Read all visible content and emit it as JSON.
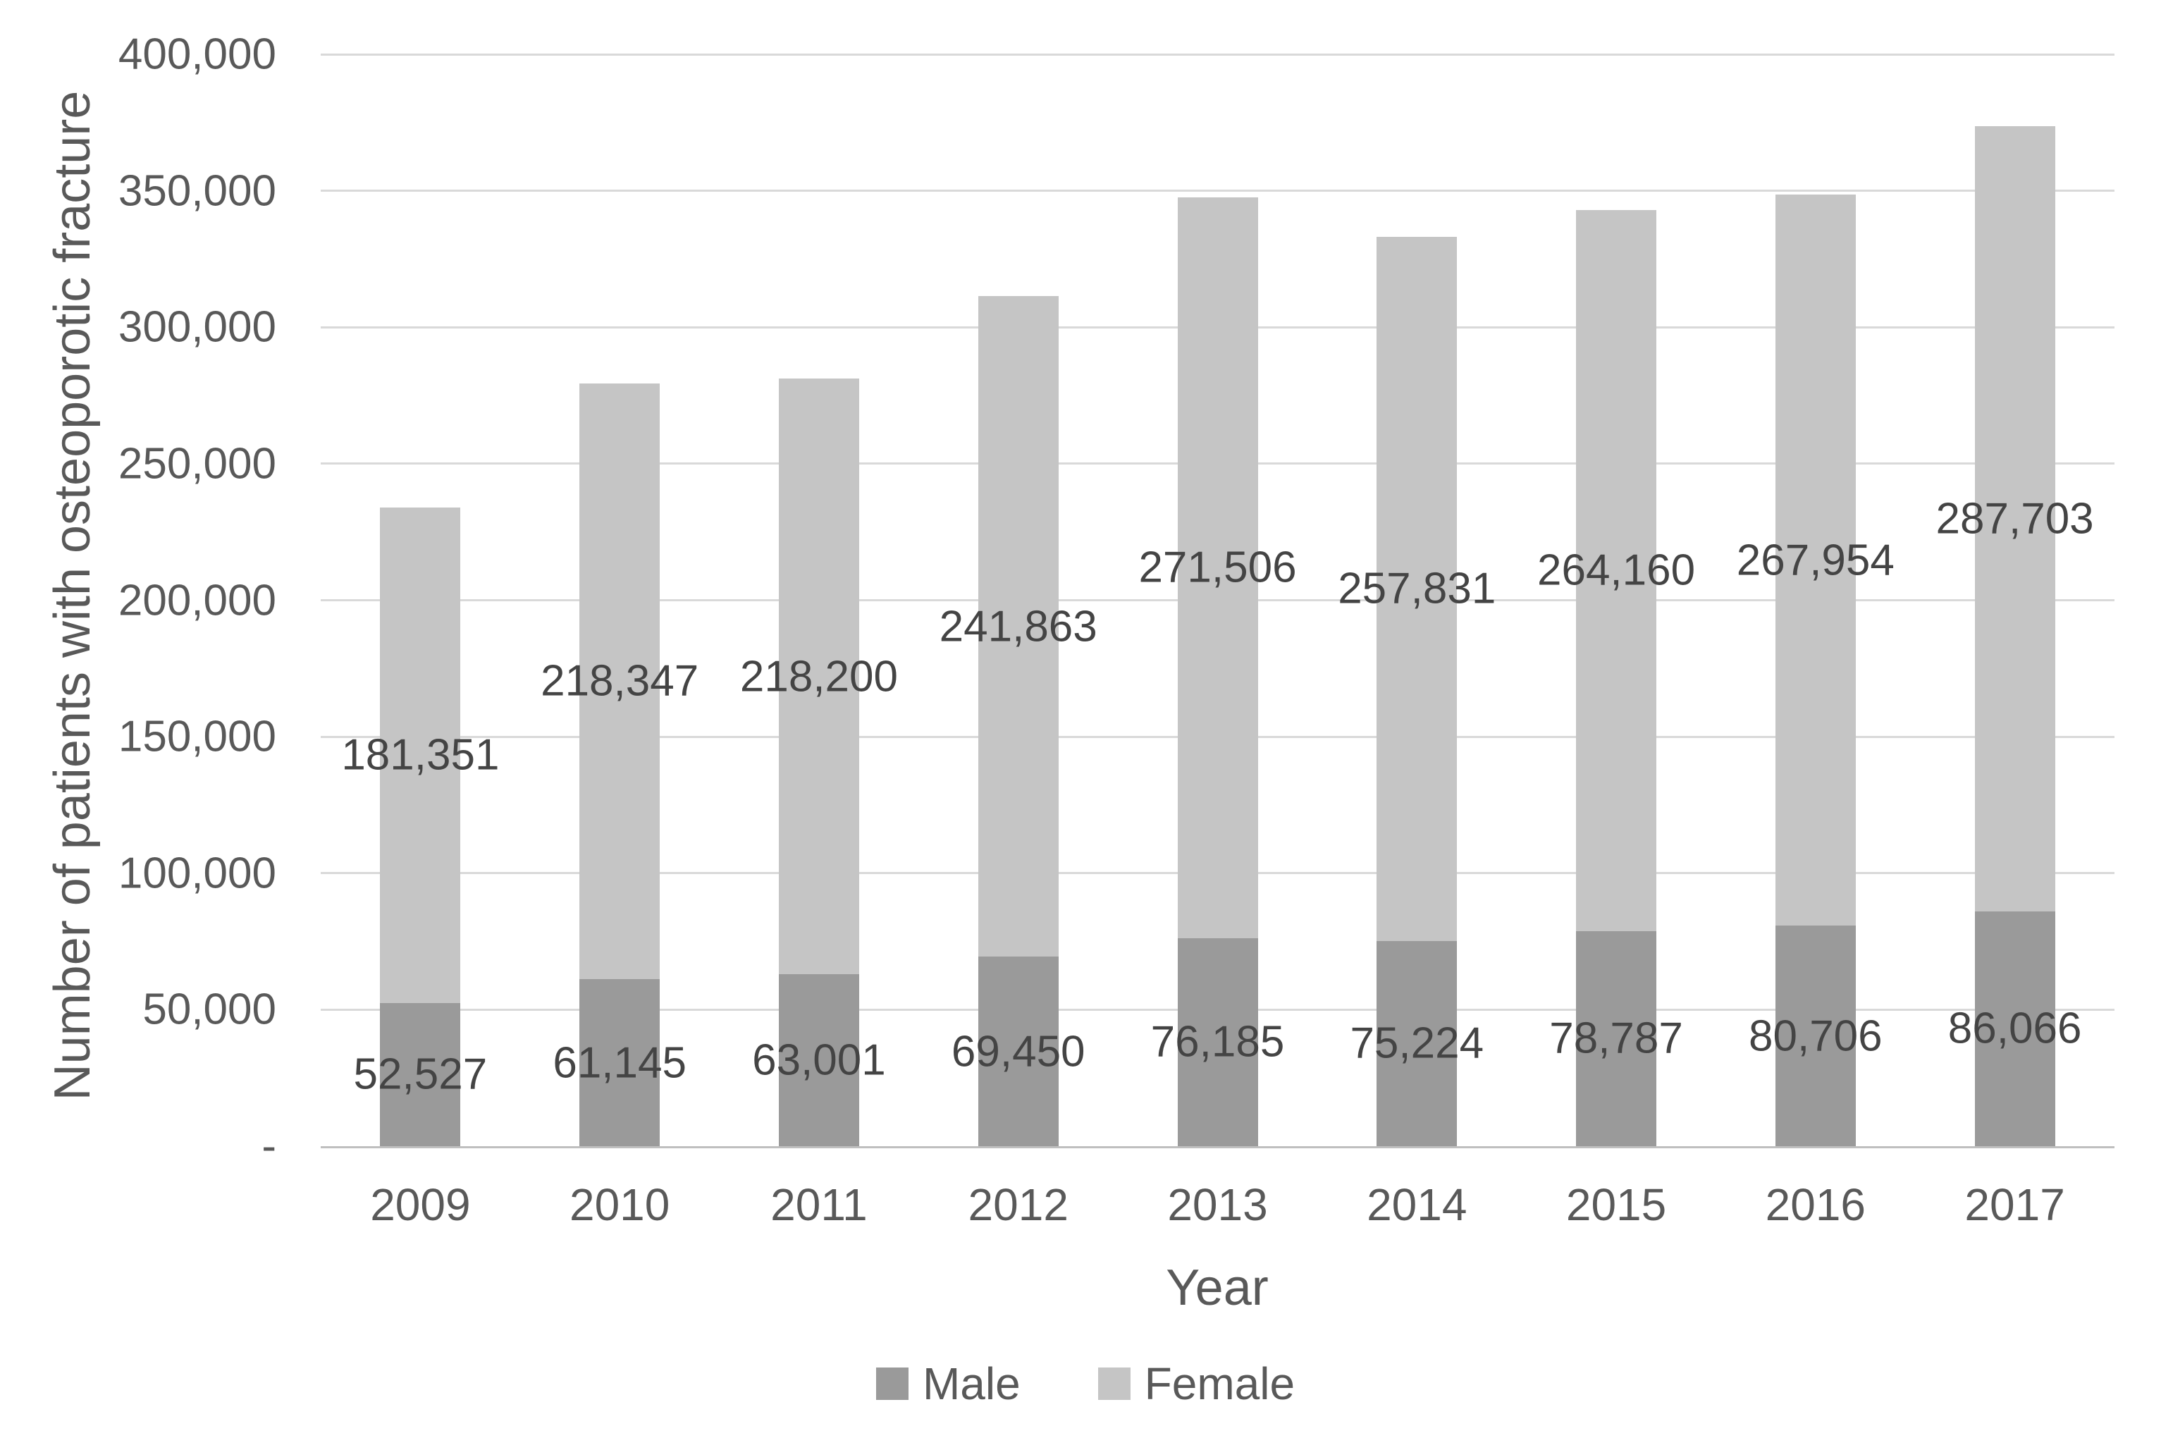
{
  "chart_data": {
    "type": "bar",
    "stacked": true,
    "title": "",
    "xlabel": "Year",
    "ylabel": "Number of patients with osteoporotic fracture",
    "categories": [
      "2009",
      "2010",
      "2011",
      "2012",
      "2013",
      "2014",
      "2015",
      "2016",
      "2017"
    ],
    "series": [
      {
        "name": "Male",
        "color": "#9a9a9a",
        "values": [
          52527,
          61145,
          63001,
          69450,
          76185,
          75224,
          78787,
          80706,
          86066
        ],
        "labels": [
          "52,527",
          "61,145",
          "63,001",
          "69,450",
          "76,185",
          "75,224",
          "78,787",
          "80,706",
          "86,066"
        ]
      },
      {
        "name": "Female",
        "color": "#c5c5c5",
        "values": [
          181351,
          218347,
          218200,
          241863,
          271506,
          257831,
          264160,
          267954,
          287703
        ],
        "labels": [
          "181,351",
          "218,347",
          "218,200",
          "241,863",
          "271,506",
          "257,831",
          "264,160",
          "267,954",
          "287,703"
        ]
      }
    ],
    "ylim": [
      0,
      400000
    ],
    "yticks": {
      "values": [
        0,
        50000,
        100000,
        150000,
        200000,
        250000,
        300000,
        350000,
        400000
      ],
      "labels": [
        "-",
        "50,000",
        "100,000",
        "150,000",
        "200,000",
        "250,000",
        "300,000",
        "350,000",
        "400,000"
      ]
    },
    "grid": "horizontal",
    "legend_position": "bottom"
  }
}
